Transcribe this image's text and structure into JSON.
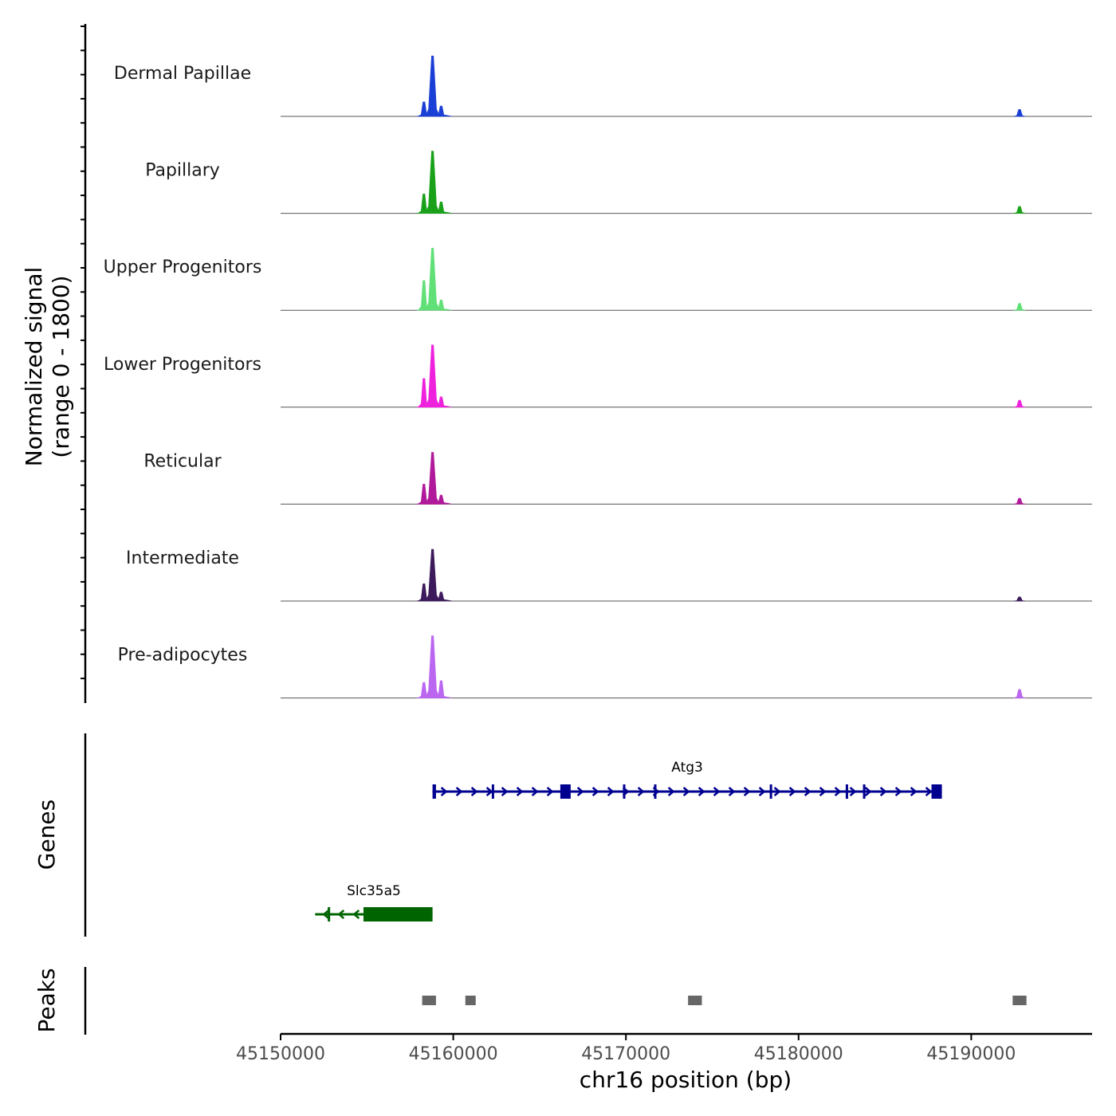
{
  "chart_data": {
    "type": "area",
    "title": "",
    "xlabel": "chr16 position (bp)",
    "ylabel": "Normalized signal\n(range 0 - 1800)",
    "ylabel_lines": [
      "Normalized signal",
      "(range 0 - 1800)"
    ],
    "xlim": [
      45150000,
      45197000
    ],
    "ylim": [
      0,
      1800
    ],
    "x_ticks": [
      45150000,
      45160000,
      45170000,
      45180000,
      45190000
    ],
    "x_tick_labels": [
      "45150000",
      "45160000",
      "45170000",
      "45180000",
      "45190000"
    ],
    "series": [
      {
        "name": "Dermal Papillae",
        "color": "#1a3fd6",
        "peaks": [
          {
            "x": 45158300,
            "y": 420
          },
          {
            "x": 45158800,
            "y": 1750
          },
          {
            "x": 45159300,
            "y": 300
          },
          {
            "x": 45192800,
            "y": 200
          }
        ]
      },
      {
        "name": "Papillary",
        "color": "#1aa11a",
        "peaks": [
          {
            "x": 45158300,
            "y": 560
          },
          {
            "x": 45158800,
            "y": 1800
          },
          {
            "x": 45159300,
            "y": 330
          },
          {
            "x": 45192800,
            "y": 200
          }
        ]
      },
      {
        "name": "Upper Progenitors",
        "color": "#62e078",
        "peaks": [
          {
            "x": 45158300,
            "y": 860
          },
          {
            "x": 45158800,
            "y": 1800
          },
          {
            "x": 45159300,
            "y": 300
          },
          {
            "x": 45192800,
            "y": 200
          }
        ]
      },
      {
        "name": "Lower Progenitors",
        "color": "#ee22dd",
        "peaks": [
          {
            "x": 45158300,
            "y": 830
          },
          {
            "x": 45158800,
            "y": 1800
          },
          {
            "x": 45159300,
            "y": 300
          },
          {
            "x": 45192800,
            "y": 200
          }
        ]
      },
      {
        "name": "Reticular",
        "color": "#b01a9a",
        "peaks": [
          {
            "x": 45158300,
            "y": 580
          },
          {
            "x": 45158800,
            "y": 1500
          },
          {
            "x": 45159300,
            "y": 260
          },
          {
            "x": 45192800,
            "y": 170
          }
        ]
      },
      {
        "name": "Intermediate",
        "color": "#3c1a5c",
        "peaks": [
          {
            "x": 45158300,
            "y": 500
          },
          {
            "x": 45158800,
            "y": 1500
          },
          {
            "x": 45159300,
            "y": 260
          },
          {
            "x": 45192800,
            "y": 120
          }
        ]
      },
      {
        "name": "Pre-adipocytes",
        "color": "#bb66f0",
        "peaks": [
          {
            "x": 45158300,
            "y": 450
          },
          {
            "x": 45158800,
            "y": 1800
          },
          {
            "x": 45159300,
            "y": 500
          },
          {
            "x": 45192800,
            "y": 250
          }
        ]
      }
    ],
    "genes": [
      {
        "name": "Atg3",
        "color": "#000090",
        "strand": "+",
        "start": 45158800,
        "end": 45188300,
        "exons": [
          [
            45158800,
            45159000
          ],
          [
            45166200,
            45166800
          ],
          [
            45187700,
            45188300
          ]
        ],
        "small_exons": [
          45162300,
          45169900,
          45171700,
          45178400,
          45182800,
          45183800
        ]
      },
      {
        "name": "Slc35a5",
        "color": "#006400",
        "strand": "-",
        "start": 45152000,
        "end": 45158800,
        "exons": [
          [
            45154800,
            45158800
          ]
        ],
        "small_exons": [
          45152800
        ]
      }
    ],
    "peaks_track": [
      [
        45158200,
        45159000
      ],
      [
        45160700,
        45161300
      ],
      [
        45173600,
        45174400
      ],
      [
        45192400,
        45193200
      ]
    ],
    "track_labels": [
      "Genes",
      "Peaks"
    ]
  }
}
